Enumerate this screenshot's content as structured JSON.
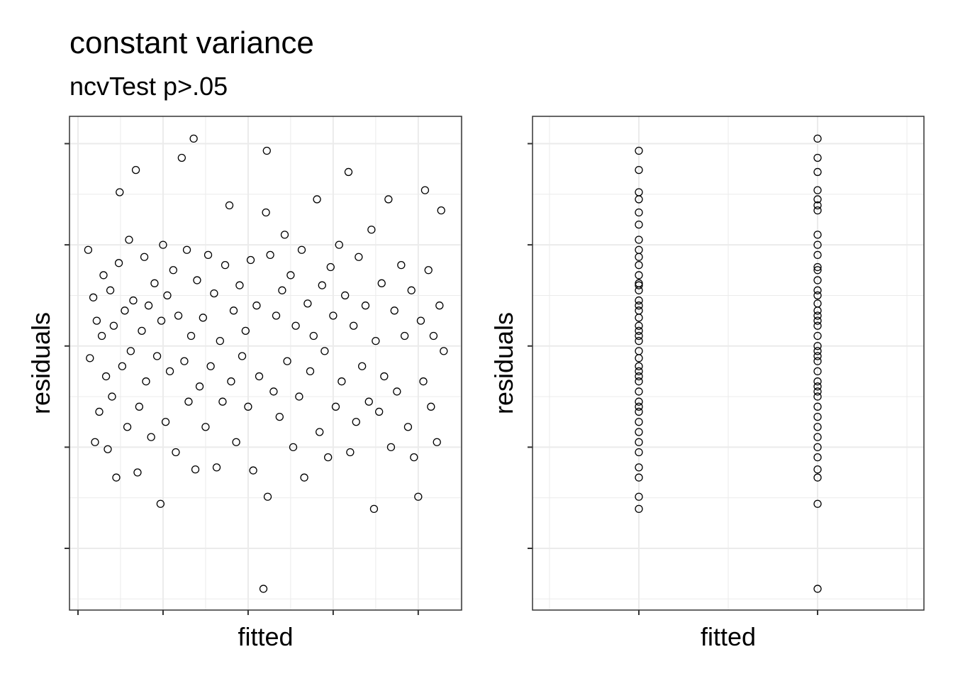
{
  "chart_data": [
    {
      "type": "scatter",
      "title": "constant variance",
      "subtitle": "ncvTest p>.05",
      "x_label": "fitted",
      "y_label": "residuals",
      "grid": true,
      "color": "#000000",
      "marker": "open-circle",
      "xlim": [
        -0.1,
        4.51
      ],
      "xticks": [
        0,
        1,
        2,
        3,
        4
      ],
      "ylim": [
        -2.61,
        2.27
      ],
      "yticks": [
        -2,
        -1,
        0,
        1,
        2
      ],
      "x": [
        0.12,
        0.14,
        0.18,
        0.2,
        0.22,
        0.25,
        0.28,
        0.3,
        0.33,
        0.35,
        0.38,
        0.4,
        0.42,
        0.45,
        0.48,
        0.49,
        0.52,
        0.55,
        0.58,
        0.6,
        0.62,
        0.65,
        0.68,
        0.7,
        0.72,
        0.75,
        0.78,
        0.8,
        0.83,
        0.86,
        0.9,
        0.93,
        0.97,
        0.98,
        1.0,
        1.03,
        1.05,
        1.08,
        1.12,
        1.15,
        1.18,
        1.22,
        1.25,
        1.28,
        1.3,
        1.33,
        1.36,
        1.38,
        1.4,
        1.43,
        1.47,
        1.5,
        1.53,
        1.56,
        1.6,
        1.63,
        1.67,
        1.7,
        1.73,
        1.78,
        1.8,
        1.83,
        1.86,
        1.9,
        1.93,
        1.97,
        2.0,
        2.03,
        2.06,
        2.1,
        2.13,
        2.18,
        2.21,
        2.22,
        2.23,
        2.26,
        2.3,
        2.33,
        2.37,
        2.4,
        2.43,
        2.46,
        2.5,
        2.53,
        2.56,
        2.6,
        2.63,
        2.66,
        2.7,
        2.73,
        2.77,
        2.81,
        2.84,
        2.87,
        2.9,
        2.94,
        2.97,
        3.0,
        3.03,
        3.07,
        3.1,
        3.14,
        3.18,
        3.2,
        3.24,
        3.27,
        3.3,
        3.34,
        3.38,
        3.42,
        3.45,
        3.48,
        3.5,
        3.54,
        3.57,
        3.6,
        3.65,
        3.68,
        3.72,
        3.75,
        3.8,
        3.84,
        3.88,
        3.92,
        3.95,
        4.0,
        4.03,
        4.06,
        4.08,
        4.12,
        4.15,
        4.18,
        4.22,
        4.25,
        4.27,
        4.3
      ],
      "y": [
        0.95,
        -0.12,
        0.48,
        -0.95,
        0.25,
        -0.65,
        0.1,
        0.7,
        -0.3,
        -1.02,
        0.55,
        -0.5,
        0.2,
        -1.3,
        0.82,
        1.52,
        -0.2,
        0.35,
        -0.8,
        1.05,
        -0.05,
        0.45,
        1.74,
        -1.25,
        -0.6,
        0.15,
        0.88,
        -0.35,
        0.4,
        -0.9,
        0.62,
        -0.1,
        -1.56,
        0.25,
        1.0,
        -0.75,
        0.5,
        -0.25,
        0.75,
        -1.05,
        0.3,
        1.86,
        -0.15,
        0.95,
        -0.55,
        0.1,
        2.05,
        -1.22,
        0.65,
        -0.4,
        0.28,
        -0.8,
        0.9,
        -0.2,
        0.52,
        -1.2,
        0.05,
        -0.55,
        0.8,
        1.39,
        -0.35,
        0.35,
        -0.95,
        0.6,
        -0.1,
        0.15,
        -0.6,
        0.85,
        -1.23,
        0.4,
        -0.3,
        -2.4,
        1.32,
        1.93,
        -1.49,
        0.9,
        -0.45,
        0.3,
        -0.7,
        0.55,
        1.1,
        -0.15,
        0.7,
        -1.0,
        0.2,
        -0.5,
        0.95,
        -1.3,
        0.42,
        -0.25,
        0.1,
        1.45,
        -0.85,
        0.6,
        -0.05,
        -1.1,
        0.78,
        0.3,
        -0.6,
        1.0,
        -0.35,
        0.5,
        1.72,
        -1.05,
        0.2,
        -0.75,
        0.88,
        -0.2,
        0.4,
        -0.55,
        1.15,
        -1.61,
        0.05,
        -0.65,
        0.62,
        -0.3,
        1.45,
        -1.0,
        0.35,
        -0.45,
        0.8,
        0.1,
        -0.8,
        0.55,
        -1.1,
        -1.49,
        0.25,
        -0.35,
        1.54,
        0.75,
        -0.6,
        0.1,
        -0.95,
        0.4,
        1.34,
        -0.05
      ]
    },
    {
      "type": "scatter",
      "x_label": "fitted",
      "y_label": "residuals",
      "grid": true,
      "color": "#000000",
      "marker": "open-circle",
      "xlim": [
        -0.595,
        1.595
      ],
      "xticks": [
        0,
        1
      ],
      "ylim": [
        -2.61,
        2.27
      ],
      "yticks": [
        -2,
        -1,
        0,
        1,
        2
      ],
      "x": [
        0,
        0,
        0,
        0,
        0,
        0,
        0,
        0,
        0,
        0,
        0,
        0,
        0,
        0,
        0,
        0,
        0,
        0,
        0,
        0,
        0,
        0,
        0,
        0,
        0,
        0,
        0,
        0,
        0,
        0,
        0,
        0,
        0,
        0,
        0,
        0,
        0,
        0,
        0,
        0,
        1,
        1,
        1,
        1,
        1,
        1,
        1,
        1,
        1,
        1,
        1,
        1,
        1,
        1,
        1,
        1,
        1,
        1,
        1,
        1,
        1,
        1,
        1,
        1,
        1,
        1,
        1,
        1,
        1,
        1,
        1,
        1,
        1,
        1,
        1,
        1,
        1,
        1,
        1,
        1
      ],
      "y": [
        1.93,
        1.74,
        1.52,
        1.45,
        1.32,
        1.2,
        1.05,
        0.95,
        0.88,
        0.8,
        0.7,
        0.62,
        0.55,
        0.45,
        0.35,
        0.28,
        0.2,
        0.1,
        0.05,
        -0.05,
        -0.12,
        -0.2,
        -0.3,
        -0.35,
        -0.45,
        -0.55,
        -0.65,
        -0.75,
        -0.85,
        -0.95,
        -1.05,
        -1.2,
        -1.3,
        -1.49,
        -1.61,
        0.4,
        0.15,
        -0.25,
        0.6,
        -0.6,
        2.05,
        1.86,
        1.72,
        1.54,
        1.45,
        1.39,
        1.34,
        1.1,
        1.0,
        0.9,
        0.78,
        0.65,
        0.5,
        0.42,
        0.3,
        0.25,
        0.1,
        0.0,
        -0.1,
        -0.15,
        -0.25,
        -0.35,
        -0.4,
        -0.5,
        -0.6,
        -0.7,
        -0.8,
        -0.9,
        -1.0,
        -1.1,
        -1.22,
        -1.3,
        -1.56,
        -2.4,
        0.35,
        0.75,
        -0.05,
        0.55,
        -0.45,
        0.2
      ]
    }
  ]
}
